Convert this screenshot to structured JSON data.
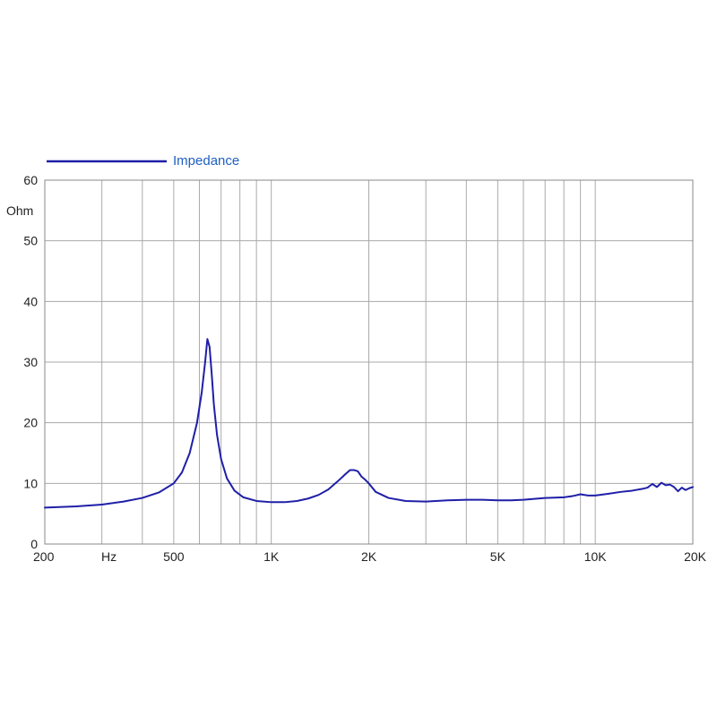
{
  "chart_data": {
    "type": "line",
    "title": "",
    "xlabel": "Hz",
    "ylabel": "Ohm",
    "x_scale": "log",
    "xlim": [
      200,
      20000
    ],
    "ylim": [
      0,
      60
    ],
    "grid": true,
    "legend_position": "top-left",
    "x_tick_labels": [
      {
        "value": 200,
        "label": "200"
      },
      {
        "value": 500,
        "label": "500"
      },
      {
        "value": 1000,
        "label": "1K"
      },
      {
        "value": 2000,
        "label": "2K"
      },
      {
        "value": 5000,
        "label": "5K"
      },
      {
        "value": 10000,
        "label": "10K"
      },
      {
        "value": 20000,
        "label": "20K"
      }
    ],
    "x_gridlines": [
      200,
      300,
      400,
      500,
      600,
      700,
      800,
      900,
      1000,
      2000,
      3000,
      4000,
      5000,
      6000,
      7000,
      8000,
      9000,
      10000,
      20000
    ],
    "y_ticks": [
      0,
      10,
      20,
      30,
      40,
      50,
      60
    ],
    "series": [
      {
        "name": "Impedance",
        "color": "#1f1fa8",
        "x": [
          200,
          250,
          300,
          350,
          400,
          450,
          500,
          530,
          560,
          590,
          610,
          625,
          635,
          645,
          655,
          665,
          680,
          700,
          730,
          770,
          820,
          900,
          1000,
          1100,
          1200,
          1300,
          1400,
          1500,
          1600,
          1700,
          1750,
          1800,
          1850,
          1900,
          1950,
          2000,
          2100,
          2300,
          2600,
          3000,
          3500,
          4000,
          4500,
          5000,
          5500,
          6000,
          7000,
          8000,
          8500,
          9000,
          9500,
          10000,
          11000,
          12000,
          13000,
          14000,
          14500,
          15000,
          15500,
          16000,
          16500,
          17000,
          17500,
          18000,
          18500,
          19000,
          19500,
          20000
        ],
        "values": [
          6.0,
          6.2,
          6.5,
          7.0,
          7.6,
          8.5,
          10.0,
          11.8,
          15.0,
          20.0,
          25.0,
          30.0,
          33.8,
          32.5,
          28.0,
          23.0,
          18.0,
          14.0,
          10.8,
          8.8,
          7.7,
          7.1,
          6.9,
          6.9,
          7.1,
          7.5,
          8.1,
          9.0,
          10.3,
          11.6,
          12.2,
          12.2,
          12.0,
          11.1,
          10.6,
          10.0,
          8.6,
          7.6,
          7.1,
          7.0,
          7.2,
          7.3,
          7.3,
          7.2,
          7.2,
          7.3,
          7.6,
          7.7,
          7.9,
          8.2,
          8.0,
          8.0,
          8.3,
          8.6,
          8.8,
          9.1,
          9.3,
          9.9,
          9.4,
          10.1,
          9.7,
          9.8,
          9.4,
          8.7,
          9.3,
          8.9,
          9.2,
          9.4
        ]
      }
    ]
  }
}
